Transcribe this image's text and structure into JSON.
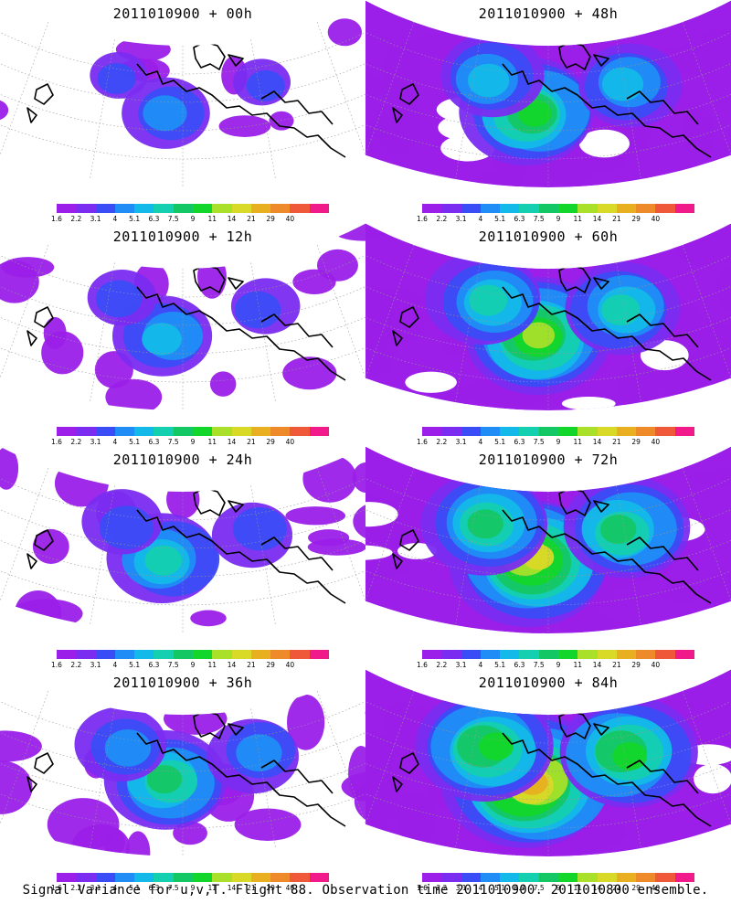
{
  "panels": [
    {
      "id": "p00",
      "title": "2011010900 + 00h",
      "level": 0
    },
    {
      "id": "p48",
      "title": "2011010900 + 48h",
      "level": 4
    },
    {
      "id": "p12",
      "title": "2011010900 + 12h",
      "level": 1
    },
    {
      "id": "p60",
      "title": "2011010900 + 60h",
      "level": 5
    },
    {
      "id": "p24",
      "title": "2011010900 + 24h",
      "level": 2
    },
    {
      "id": "p72",
      "title": "2011010900 + 72h",
      "level": 6
    },
    {
      "id": "p36",
      "title": "2011010900 + 36h",
      "level": 3
    },
    {
      "id": "p84",
      "title": "2011010900 + 84h",
      "level": 7
    }
  ],
  "colorbar": {
    "labels": [
      "1.6",
      "2.2",
      "3.1",
      "4",
      "5.1",
      "6.3",
      "7.5",
      "9",
      "11",
      "14",
      "21",
      "29",
      "40"
    ],
    "colors": [
      "#9b1fe8",
      "#7a2cf0",
      "#3a4cf5",
      "#1f8df5",
      "#13b9e8",
      "#14cfb0",
      "#14c765",
      "#12d62a",
      "#a8e02a",
      "#d9d927",
      "#e8b020",
      "#ef8a2a",
      "#f0583a",
      "#f01a8a"
    ]
  },
  "footer": {
    "caption": "Signal Variance for u,v,T. Flight 88. Observation time 2011010900. 2011010800 ensemble."
  }
}
